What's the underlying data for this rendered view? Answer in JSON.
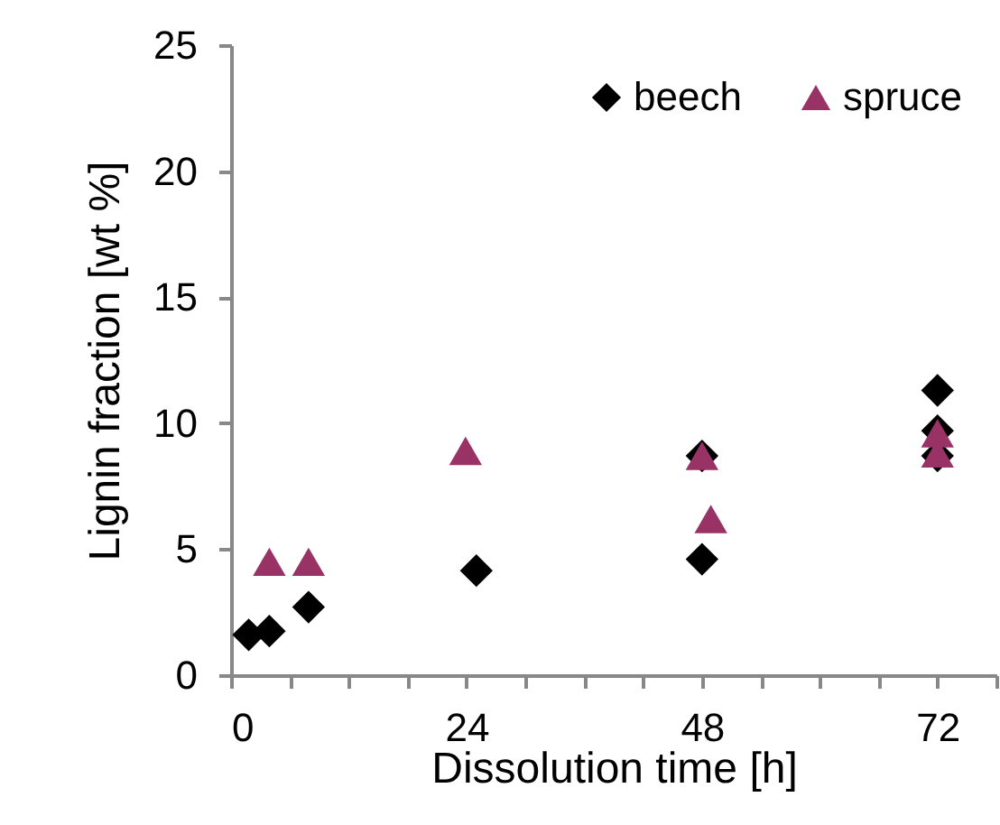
{
  "chart_data": {
    "type": "scatter",
    "xlabel": "Dissolution time [h]",
    "ylabel": "Lignin fraction [wt %]",
    "xlim": [
      0,
      78
    ],
    "xticks": [
      0,
      {
        "value": 6,
        "label": null
      },
      {
        "value": 12,
        "label": null
      },
      {
        "value": 18,
        "label": null
      },
      24,
      {
        "value": 30,
        "label": null
      },
      {
        "value": 36,
        "label": null
      },
      {
        "value": 42,
        "label": null
      },
      48,
      {
        "value": 54,
        "label": null
      },
      {
        "value": 60,
        "label": null
      },
      {
        "value": 66,
        "label": null
      },
      72,
      {
        "value": 78,
        "label": null
      }
    ],
    "ylim": [
      0,
      25
    ],
    "yticks": [
      0,
      5,
      10,
      15,
      20,
      25
    ],
    "grid": false,
    "legend": "top right",
    "series": [
      {
        "name": "beech",
        "color": "#000000",
        "marker": "diamond",
        "x": [
          1.8,
          3.9,
          7.9,
          25,
          48,
          48,
          72,
          72,
          72
        ],
        "values": [
          1.6,
          1.75,
          2.7,
          4.15,
          8.7,
          4.6,
          11.3,
          9.7,
          8.7
        ]
      },
      {
        "name": "spruce",
        "color": "#993366",
        "marker": "triangle",
        "x": [
          3.9,
          7.9,
          23.9,
          48,
          48.9,
          72,
          72
        ],
        "values": [
          4.5,
          4.5,
          8.9,
          8.7,
          6.2,
          9.6,
          8.8
        ]
      }
    ]
  }
}
